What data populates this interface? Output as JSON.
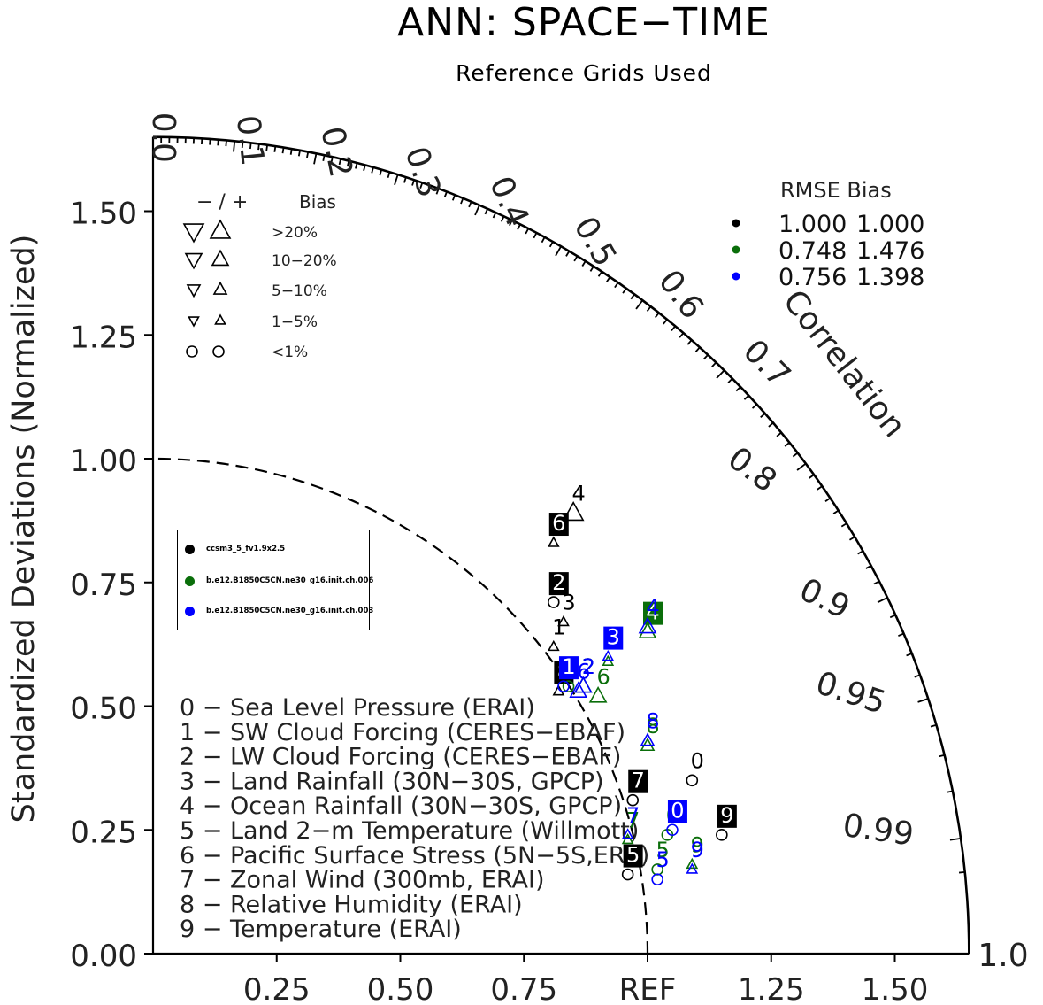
{
  "title": "ANN: SPACE−TIME",
  "subtitle": "Reference Grids Used",
  "chart_data": {
    "type": "scatter",
    "subtype": "taylor-diagram",
    "title": "ANN: SPACE−TIME",
    "subtitle": "Reference Grids Used",
    "ylabel": "Standardized Deviations (Normalized)",
    "correlation_label": "Correlation",
    "radial_max": 1.65,
    "ref_label": "REF",
    "std_ticks": [
      "0.00",
      "0.25",
      "0.50",
      "0.75",
      "1.00",
      "1.25",
      "1.50"
    ],
    "x_ticks": [
      "0.25",
      "0.50",
      "0.75",
      "REF",
      "1.25",
      "1.50"
    ],
    "correlation_ticks": [
      "0.0",
      "0.1",
      "0.2",
      "0.3",
      "0.4",
      "0.5",
      "0.6",
      "0.7",
      "0.8",
      "0.9",
      "0.95",
      "0.99",
      "1.0"
    ],
    "bias_legend": {
      "header_sign": "− / +",
      "header_bias": "Bias",
      "rows": [
        {
          "label": ">20%",
          "size": "xl"
        },
        {
          "label": "10−20%",
          "size": "l"
        },
        {
          "label": "5−10%",
          "size": "m"
        },
        {
          "label": "1−5%",
          "size": "s"
        },
        {
          "label": "<1%",
          "size": "circle"
        }
      ]
    },
    "rmse_table": {
      "header": "RMSE  Bias",
      "rows": [
        {
          "color": "#000000",
          "rmse": "1.000",
          "bias": "1.000"
        },
        {
          "color": "#0a6e0a",
          "rmse": "0.748",
          "bias": "1.476"
        },
        {
          "color": "#0000ff",
          "rmse": "0.756",
          "bias": "1.398"
        }
      ]
    },
    "case_legend": [
      {
        "name": "ccsm3_5_fv1.9x2.5",
        "color": "#000000"
      },
      {
        "name": "b.e12.B1850C5CN.ne30_g16.init.ch.006",
        "color": "#0a6e0a"
      },
      {
        "name": "b.e12.B1850C5CN.ne30_g16.init.ch.003",
        "color": "#0000ff"
      }
    ],
    "variables": [
      "0 − Sea Level Pressure (ERAI)",
      "1 − SW Cloud Forcing (CERES−EBAF)",
      "2 − LW Cloud Forcing (CERES−EBAF)",
      "3 − Land Rainfall (30N−30S, GPCP)",
      "4 − Ocean Rainfall (30N−30S, GPCP)",
      "5 − Land 2−m Temperature (Willmott)",
      "6 − Pacific Surface Stress (5N−5S,ERS)",
      "7 − Zonal Wind (300mb, ERAI)",
      "8 − Relative Humidity (ERAI)",
      "9 − Temperature (ERAI)"
    ],
    "series": [
      {
        "name": "ccsm3_5_fv1.9x2.5",
        "color": "#000000",
        "points": [
          {
            "id": "0",
            "x": 1.09,
            "y": 0.35,
            "marker": "circle",
            "label_style": "text"
          },
          {
            "id": "1",
            "x": 0.81,
            "y": 0.62,
            "marker": "up-s",
            "label_style": "text"
          },
          {
            "id": "2",
            "x": 0.81,
            "y": 0.71,
            "marker": "circle",
            "label_style": "box"
          },
          {
            "id": "3",
            "x": 0.83,
            "y": 0.67,
            "marker": "up-s",
            "label_style": "text"
          },
          {
            "id": "4",
            "x": 0.85,
            "y": 0.89,
            "marker": "up-xl",
            "label_style": "text"
          },
          {
            "id": "5",
            "x": 0.96,
            "y": 0.16,
            "marker": "circle",
            "label_style": "box"
          },
          {
            "id": "6",
            "x": 0.81,
            "y": 0.83,
            "marker": "up-s",
            "label_style": "box"
          },
          {
            "id": "7",
            "x": 0.97,
            "y": 0.31,
            "marker": "circle",
            "label_style": "box"
          },
          {
            "id": "8",
            "x": 0.82,
            "y": 0.53,
            "marker": "up-s",
            "label_style": "box"
          },
          {
            "id": "9",
            "x": 1.15,
            "y": 0.24,
            "marker": "circle",
            "label_style": "box"
          }
        ]
      },
      {
        "name": "b.e12.B1850C5CN.ne30_g16.init.ch.006",
        "color": "#0a6e0a",
        "points": [
          {
            "id": "0",
            "x": 1.04,
            "y": 0.24,
            "marker": "circle",
            "label_style": "text"
          },
          {
            "id": "1",
            "x": 0.84,
            "y": 0.54,
            "marker": "circle",
            "label_style": "text"
          },
          {
            "id": "2",
            "x": 0.87,
            "y": 0.54,
            "marker": "up-l",
            "label_style": "text"
          },
          {
            "id": "3",
            "x": 0.92,
            "y": 0.59,
            "marker": "up-s",
            "label_style": "text"
          },
          {
            "id": "4",
            "x": 1.0,
            "y": 0.65,
            "marker": "up-l",
            "label_style": "box"
          },
          {
            "id": "5",
            "x": 1.02,
            "y": 0.17,
            "marker": "circle",
            "label_style": "text"
          },
          {
            "id": "6",
            "x": 0.9,
            "y": 0.52,
            "marker": "up-l",
            "label_style": "text"
          },
          {
            "id": "7",
            "x": 0.96,
            "y": 0.23,
            "marker": "up-s",
            "label_style": "text"
          },
          {
            "id": "8",
            "x": 1.0,
            "y": 0.42,
            "marker": "up-m",
            "label_style": "text"
          },
          {
            "id": "9",
            "x": 1.09,
            "y": 0.18,
            "marker": "up-s",
            "label_style": "text"
          }
        ]
      },
      {
        "name": "b.e12.B1850C5CN.ne30_g16.init.ch.003",
        "color": "#0000ff",
        "points": [
          {
            "id": "0",
            "x": 1.05,
            "y": 0.25,
            "marker": "circle",
            "label_style": "box"
          },
          {
            "id": "1",
            "x": 0.83,
            "y": 0.54,
            "marker": "circle",
            "label_style": "box"
          },
          {
            "id": "2",
            "x": 0.87,
            "y": 0.54,
            "marker": "up-l",
            "label_style": "text"
          },
          {
            "id": "3",
            "x": 0.92,
            "y": 0.6,
            "marker": "up-s",
            "label_style": "box"
          },
          {
            "id": "4",
            "x": 1.0,
            "y": 0.66,
            "marker": "up-l",
            "label_style": "text"
          },
          {
            "id": "5",
            "x": 1.02,
            "y": 0.15,
            "marker": "circle",
            "label_style": "text"
          },
          {
            "id": "6",
            "x": 0.86,
            "y": 0.53,
            "marker": "up-l",
            "label_style": "text"
          },
          {
            "id": "7",
            "x": 0.96,
            "y": 0.24,
            "marker": "up-s",
            "label_style": "text"
          },
          {
            "id": "8",
            "x": 1.0,
            "y": 0.43,
            "marker": "up-m",
            "label_style": "text"
          },
          {
            "id": "9",
            "x": 1.09,
            "y": 0.17,
            "marker": "up-s",
            "label_style": "text"
          }
        ]
      }
    ]
  }
}
